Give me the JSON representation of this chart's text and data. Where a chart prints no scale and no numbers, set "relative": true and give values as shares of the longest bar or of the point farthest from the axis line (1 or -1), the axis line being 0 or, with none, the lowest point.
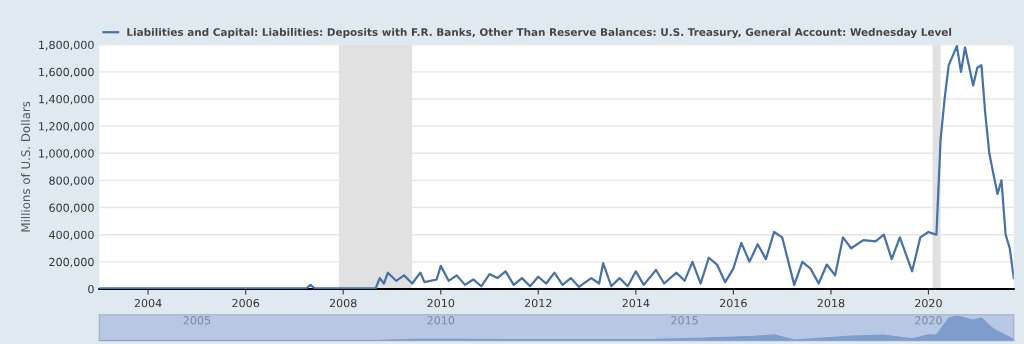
{
  "chart_data": [
    {
      "type": "line",
      "ylabel": "Millions of U.S. Dollars",
      "grid": "y",
      "legend": "top left",
      "marker": "none",
      "line_style": "solid",
      "xlim": [
        "2003-01",
        "2021-10"
      ],
      "xticks": [
        "2004",
        "2006",
        "2008",
        "2010",
        "2012",
        "2014",
        "2016",
        "2018",
        "2020"
      ],
      "ylim": [
        0,
        1800000
      ],
      "yticks": [
        {
          "value": 0,
          "label": "0"
        },
        {
          "value": 200000,
          "label": "200,000"
        },
        {
          "value": 400000,
          "label": "400,000"
        },
        {
          "value": 600000,
          "label": "600,000"
        },
        {
          "value": 800000,
          "label": "800,000"
        },
        {
          "value": 1000000,
          "label": "1,000,000"
        },
        {
          "value": 1200000,
          "label": "1,200,000"
        },
        {
          "value": 1400000,
          "label": "1,400,000"
        },
        {
          "value": 1600000,
          "label": "1,600,000"
        },
        {
          "value": 1800000,
          "label": "1,800,000"
        }
      ],
      "bands": [
        {
          "axis": "x",
          "from": "2007-12",
          "to": "2009-06",
          "color": "#e1e1e1"
        },
        {
          "axis": "x",
          "from": "2020-02",
          "to": "2020-04",
          "color": "#e1e1e1"
        }
      ],
      "series": [
        {
          "name": "Liabilities and Capital: Liabilities: Deposits with F.R. Banks, Other Than Reserve Balances: U.S. Treasury, General Account: Wednesday Level",
          "color": "#4572a7",
          "x": [
            "2003-01",
            "2007-04",
            "2007-05",
            "2007-06",
            "2008-09",
            "2008-10",
            "2008-11",
            "2008-12",
            "2009-02",
            "2009-04",
            "2009-06",
            "2009-08",
            "2009-09",
            "2009-12",
            "2010-01",
            "2010-03",
            "2010-05",
            "2010-07",
            "2010-09",
            "2010-11",
            "2011-01",
            "2011-03",
            "2011-05",
            "2011-07",
            "2011-09",
            "2011-11",
            "2012-01",
            "2012-03",
            "2012-05",
            "2012-07",
            "2012-09",
            "2012-11",
            "2013-02",
            "2013-04",
            "2013-05",
            "2013-07",
            "2013-09",
            "2013-11",
            "2014-01",
            "2014-03",
            "2014-06",
            "2014-08",
            "2014-11",
            "2015-01",
            "2015-03",
            "2015-05",
            "2015-07",
            "2015-09",
            "2015-11",
            "2016-01",
            "2016-03",
            "2016-05",
            "2016-07",
            "2016-09",
            "2016-11",
            "2017-01",
            "2017-04",
            "2017-06",
            "2017-08",
            "2017-10",
            "2017-12",
            "2018-02",
            "2018-04",
            "2018-06",
            "2018-09",
            "2018-12",
            "2019-02",
            "2019-04",
            "2019-06",
            "2019-09",
            "2019-11",
            "2020-01",
            "2020-03",
            "2020-04",
            "2020-05",
            "2020-06",
            "2020-08",
            "2020-09",
            "2020-10",
            "2020-12",
            "2021-01",
            "2021-02",
            "2021-03",
            "2021-04",
            "2021-05",
            "2021-06",
            "2021-07",
            "2021-08",
            "2021-09",
            "2021-10"
          ],
          "values": [
            5000,
            5000,
            30000,
            5000,
            5000,
            80000,
            40000,
            120000,
            60000,
            100000,
            40000,
            120000,
            50000,
            70000,
            170000,
            60000,
            100000,
            30000,
            70000,
            20000,
            110000,
            80000,
            130000,
            30000,
            80000,
            20000,
            90000,
            40000,
            120000,
            30000,
            80000,
            15000,
            80000,
            40000,
            190000,
            20000,
            80000,
            20000,
            130000,
            30000,
            140000,
            40000,
            120000,
            60000,
            200000,
            40000,
            230000,
            180000,
            50000,
            150000,
            340000,
            200000,
            330000,
            220000,
            420000,
            380000,
            30000,
            200000,
            150000,
            40000,
            180000,
            100000,
            380000,
            300000,
            360000,
            350000,
            400000,
            220000,
            380000,
            130000,
            380000,
            420000,
            400000,
            1100000,
            1400000,
            1650000,
            1790000,
            1600000,
            1780000,
            1500000,
            1630000,
            1650000,
            1300000,
            1000000,
            850000,
            700000,
            800000,
            400000,
            300000,
            80000
          ]
        }
      ]
    },
    {
      "type": "area",
      "relative": true,
      "tick_labels": "x",
      "xlim": [
        "2003-01",
        "2021-10"
      ],
      "xticks": [
        "2005",
        "2010",
        "2015",
        "2020"
      ],
      "series": [
        {
          "color": "#7f9cce",
          "x": [
            "2003-01",
            "2008-09",
            "2009-06",
            "2010-06",
            "2012-06",
            "2014-06",
            "2015-06",
            "2016-06",
            "2016-11",
            "2017-04",
            "2018-06",
            "2019-02",
            "2019-09",
            "2020-01",
            "2020-03",
            "2020-06",
            "2020-08",
            "2020-12",
            "2021-02",
            "2021-05",
            "2021-08",
            "2021-10"
          ],
          "values": [
            0.003,
            0.003,
            0.05,
            0.05,
            0.04,
            0.05,
            0.1,
            0.17,
            0.23,
            0.02,
            0.18,
            0.22,
            0.07,
            0.23,
            0.22,
            0.92,
            1.0,
            0.84,
            0.92,
            0.47,
            0.22,
            0.04
          ]
        }
      ]
    }
  ]
}
